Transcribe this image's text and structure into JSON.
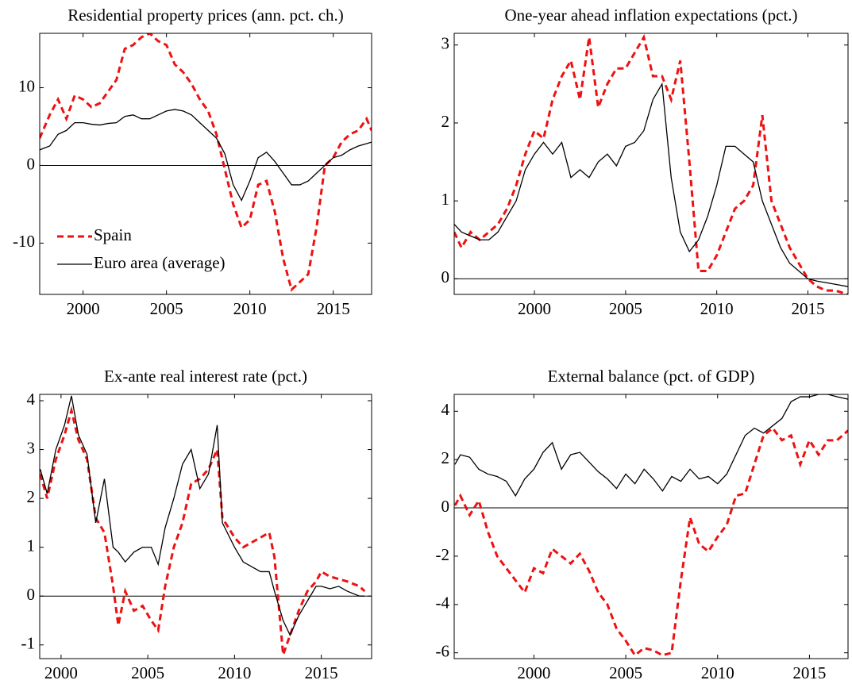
{
  "chart_data": [
    {
      "type": "line",
      "title": "Residential property prices (ann. pct. ch.)",
      "x": [
        1997.4,
        1998,
        1998.5,
        1999,
        1999.5,
        2000,
        2000.5,
        2001,
        2001.5,
        2002,
        2002.5,
        2003,
        2003.5,
        2004,
        2004.5,
        2005,
        2005.5,
        2006,
        2006.5,
        2007,
        2007.5,
        2008,
        2008.5,
        2009,
        2009.5,
        2010,
        2010.5,
        2011,
        2011.5,
        2012,
        2012.5,
        2013,
        2013.5,
        2014,
        2014.5,
        2015,
        2015.5,
        2016,
        2016.5,
        2017,
        2017.3
      ],
      "series": [
        {
          "name": "Spain",
          "color": "#ee1111",
          "style": "dashed",
          "values": [
            3.5,
            6.5,
            8.5,
            6,
            9,
            8.5,
            7.5,
            8,
            9.5,
            11,
            15,
            15.5,
            16.5,
            17,
            16,
            15.5,
            13,
            12,
            10.5,
            8.5,
            7,
            4,
            -0.5,
            -5,
            -8,
            -7,
            -2.5,
            -2,
            -6,
            -12,
            -16,
            -15,
            -14,
            -8,
            0,
            1,
            3,
            4,
            4.5,
            6,
            4.5
          ]
        },
        {
          "name": "Euro area (average)",
          "color": "#000000",
          "style": "solid",
          "values": [
            2,
            2.5,
            4,
            4.5,
            5.5,
            5.5,
            5.3,
            5.2,
            5.4,
            5.5,
            6.3,
            6.5,
            6,
            6,
            6.5,
            7,
            7.2,
            7,
            6.5,
            5.5,
            4.5,
            3.5,
            1.5,
            -2.5,
            -4.5,
            -2,
            1,
            1.7,
            0.5,
            -1,
            -2.5,
            -2.5,
            -2,
            -1,
            0,
            1,
            1.3,
            2,
            2.5,
            2.8,
            3
          ]
        }
      ],
      "xlim": [
        1997.4,
        2017.3
      ],
      "ylim": [
        -16.6,
        17
      ],
      "xticks": [
        2000,
        2005,
        2010,
        2015
      ],
      "yticks": [
        -10,
        0,
        10
      ],
      "hline": 0,
      "legend": "lower left"
    },
    {
      "type": "line",
      "title": "One-year ahead inflation expectations (pct.)",
      "x": [
        1995.6,
        1996,
        1996.5,
        1997,
        1997.5,
        1998,
        1998.5,
        1999,
        1999.5,
        2000,
        2000.5,
        2001,
        2001.5,
        2002,
        2002.5,
        2003,
        2003.5,
        2004,
        2004.5,
        2005,
        2005.5,
        2006,
        2006.5,
        2007,
        2007.5,
        2008,
        2008.5,
        2009,
        2009.5,
        2010,
        2010.5,
        2011,
        2011.5,
        2012,
        2012.5,
        2013,
        2013.5,
        2014,
        2014.5,
        2015,
        2015.5,
        2016,
        2016.5,
        2017.2
      ],
      "series": [
        {
          "color": "#ee1111",
          "style": "dashed",
          "values": [
            0.6,
            0.4,
            0.6,
            0.5,
            0.6,
            0.7,
            0.9,
            1.2,
            1.6,
            1.9,
            1.8,
            2.3,
            2.6,
            2.8,
            2.3,
            3.1,
            2.2,
            2.5,
            2.7,
            2.7,
            2.9,
            3.1,
            2.6,
            2.6,
            2.3,
            2.8,
            1.5,
            0.1,
            0.1,
            0.3,
            0.6,
            0.9,
            1.0,
            1.2,
            2.1,
            1.0,
            0.7,
            0.4,
            0.2,
            0.0,
            -0.1,
            -0.15,
            -0.15,
            -0.2
          ]
        },
        {
          "color": "#000000",
          "style": "solid",
          "values": [
            0.7,
            0.6,
            0.55,
            0.5,
            0.5,
            0.6,
            0.8,
            1.0,
            1.4,
            1.6,
            1.75,
            1.6,
            1.75,
            1.3,
            1.4,
            1.3,
            1.5,
            1.6,
            1.45,
            1.7,
            1.75,
            1.9,
            2.3,
            2.5,
            1.3,
            0.6,
            0.35,
            0.5,
            0.8,
            1.2,
            1.7,
            1.7,
            1.6,
            1.5,
            1.0,
            0.7,
            0.4,
            0.2,
            0.1,
            0.0,
            -0.03,
            -0.05,
            -0.07,
            -0.1
          ]
        }
      ],
      "xlim": [
        1995.6,
        2017.2
      ],
      "ylim": [
        -0.2,
        3.15
      ],
      "xticks": [
        2000,
        2005,
        2010,
        2015
      ],
      "yticks": [
        0,
        1,
        2,
        3
      ],
      "hline": 0
    },
    {
      "type": "line",
      "title": "Ex-ante real interest rate (pct.)",
      "x": [
        1998.8,
        1999.2,
        1999.7,
        2000.2,
        2000.6,
        2001,
        2001.5,
        2002,
        2002.5,
        2003,
        2003.3,
        2003.7,
        2004.2,
        2004.7,
        2005.2,
        2005.6,
        2006,
        2006.5,
        2007,
        2007.5,
        2008,
        2008.5,
        2009,
        2009.3,
        2010,
        2010.5,
        2011,
        2011.5,
        2012,
        2012.3,
        2012.8,
        2013.2,
        2013.7,
        2014.2,
        2014.7,
        2015,
        2015.5,
        2016,
        2016.5,
        2017.2,
        2017.5
      ],
      "series": [
        {
          "color": "#ee1111",
          "style": "dashed",
          "values": [
            2.5,
            2.0,
            2.8,
            3.3,
            3.8,
            3.2,
            2.8,
            1.6,
            1.3,
            0.2,
            -0.6,
            0.1,
            -0.3,
            -0.2,
            -0.5,
            -0.7,
            0.2,
            1.0,
            1.5,
            2.3,
            2.4,
            2.6,
            3.0,
            1.6,
            1.2,
            1.0,
            1.1,
            1.2,
            1.3,
            0.8,
            -1.2,
            -0.8,
            -0.3,
            0.1,
            0.3,
            0.5,
            0.4,
            0.35,
            0.3,
            0.2,
            0.1
          ]
        },
        {
          "color": "#000000",
          "style": "solid",
          "values": [
            2.6,
            2.1,
            3.0,
            3.5,
            4.1,
            3.3,
            2.9,
            1.5,
            2.4,
            1.0,
            0.9,
            0.7,
            0.9,
            1.0,
            1.0,
            0.65,
            1.4,
            2.0,
            2.7,
            3.0,
            2.2,
            2.5,
            3.5,
            1.5,
            1.0,
            0.7,
            0.6,
            0.5,
            0.5,
            0.1,
            -0.5,
            -0.8,
            -0.4,
            -0.1,
            0.2,
            0.2,
            0.15,
            0.2,
            0.1,
            0.0,
            0.0
          ]
        }
      ],
      "xlim": [
        1998.77,
        2017.9
      ],
      "ylim": [
        -1.28,
        4.13
      ],
      "xticks": [
        2000,
        2005,
        2010,
        2015
      ],
      "yticks": [
        -1,
        0,
        1,
        2,
        3,
        4
      ],
      "hline": 0
    },
    {
      "type": "line",
      "title": "External balance (pct. of GDP)",
      "x": [
        1995.7,
        1996,
        1996.5,
        1997,
        1997.5,
        1998,
        1998.5,
        1999,
        1999.5,
        2000,
        2000.5,
        2001,
        2001.5,
        2002,
        2002.5,
        2003,
        2003.5,
        2004,
        2004.5,
        2005,
        2005.5,
        2006,
        2006.5,
        2007,
        2007.5,
        2008,
        2008.5,
        2009,
        2009.5,
        2010,
        2010.5,
        2011,
        2011.5,
        2012,
        2012.5,
        2013,
        2013.5,
        2014,
        2014.5,
        2015,
        2015.5,
        2016,
        2016.5,
        2017.1
      ],
      "series": [
        {
          "color": "#ee1111",
          "style": "dashed",
          "values": [
            0.1,
            0.5,
            -0.3,
            0.3,
            -1.0,
            -2.0,
            -2.5,
            -3.0,
            -3.5,
            -2.5,
            -2.7,
            -1.7,
            -2.0,
            -2.3,
            -1.9,
            -2.6,
            -3.5,
            -4.0,
            -5.0,
            -5.5,
            -6.1,
            -5.8,
            -5.9,
            -6.1,
            -6.0,
            -3.0,
            -0.4,
            -1.5,
            -1.8,
            -1.2,
            -0.7,
            0.5,
            0.6,
            1.8,
            3.0,
            3.3,
            2.8,
            3.0,
            1.8,
            2.8,
            2.2,
            2.8,
            2.8,
            3.2
          ]
        },
        {
          "color": "#000000",
          "style": "solid",
          "values": [
            1.8,
            2.2,
            2.1,
            1.6,
            1.4,
            1.3,
            1.1,
            0.5,
            1.2,
            1.6,
            2.3,
            2.7,
            1.6,
            2.2,
            2.3,
            1.9,
            1.5,
            1.2,
            0.8,
            1.4,
            1.0,
            1.6,
            1.2,
            0.7,
            1.3,
            1.1,
            1.6,
            1.2,
            1.3,
            1.0,
            1.4,
            2.2,
            3.0,
            3.3,
            3.1,
            3.4,
            3.7,
            4.4,
            4.6,
            4.6,
            4.7,
            4.7,
            4.6,
            4.5
          ]
        }
      ],
      "xlim": [
        1995.66,
        2017.1
      ],
      "ylim": [
        -6.24,
        4.7
      ],
      "xticks": [
        2000,
        2005,
        2010,
        2015
      ],
      "yticks": [
        -6,
        -4,
        -2,
        0,
        2,
        4
      ],
      "hline": 0
    }
  ]
}
